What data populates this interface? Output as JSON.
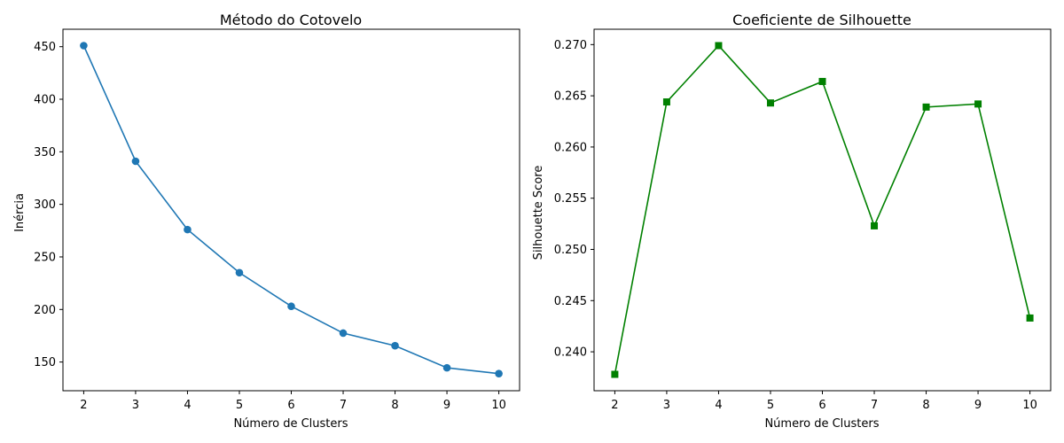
{
  "chart_data": [
    {
      "type": "line",
      "title": "Método do Cotovelo",
      "xlabel": "Número de Clusters",
      "ylabel": "Inércia",
      "x": [
        2,
        3,
        4,
        5,
        6,
        7,
        8,
        9,
        10
      ],
      "series": [
        {
          "values": [
            451,
            341,
            276,
            235,
            203,
            177.5,
            165.5,
            144.5,
            139
          ]
        }
      ],
      "xlim": [
        1.6,
        10.4
      ],
      "ylim": [
        122.7,
        466.6
      ],
      "xticks": [
        2,
        3,
        4,
        5,
        6,
        7,
        8,
        9,
        10
      ],
      "yticks": [
        150,
        200,
        250,
        300,
        350,
        400,
        450
      ],
      "marker": "circle",
      "color": "#1f77b4",
      "grid": false
    },
    {
      "type": "line",
      "title": "Coeficiente de Silhouette",
      "xlabel": "Número de Clusters",
      "ylabel": "Silhouette Score",
      "x": [
        2,
        3,
        4,
        5,
        6,
        7,
        8,
        9,
        10
      ],
      "series": [
        {
          "values": [
            0.2378,
            0.2644,
            0.2699,
            0.2643,
            0.2664,
            0.2523,
            0.2639,
            0.2642,
            0.2433
          ]
        }
      ],
      "xlim": [
        1.6,
        10.4
      ],
      "ylim": [
        0.2362,
        0.2715
      ],
      "xticks": [
        2,
        3,
        4,
        5,
        6,
        7,
        8,
        9,
        10
      ],
      "yticks": [
        0.24,
        0.245,
        0.25,
        0.255,
        0.26,
        0.265,
        0.27
      ],
      "ytick_labels": [
        "0.240",
        "0.245",
        "0.250",
        "0.255",
        "0.260",
        "0.265",
        "0.270"
      ],
      "marker": "square",
      "color": "#008000",
      "grid": false
    }
  ]
}
